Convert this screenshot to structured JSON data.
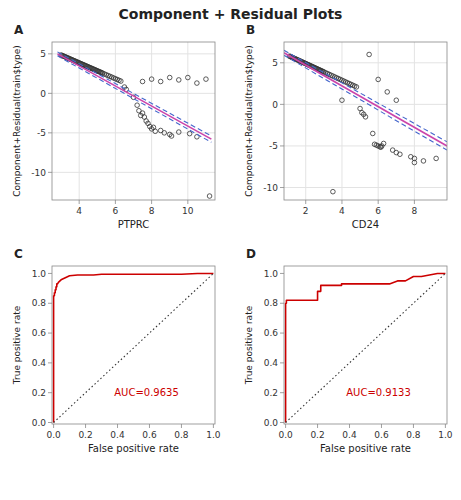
{
  "title": "Component + Residual Plots",
  "chart_data": [
    {
      "type": "scatter",
      "title": "A",
      "xlabel": "PTPRC",
      "ylabel": "Component+Residual(train$type)",
      "xlim": [
        2.5,
        11.5
      ],
      "ylim": [
        -13.5,
        6.5
      ],
      "xticks": [
        4,
        6,
        8,
        10
      ],
      "yticks": [
        -10,
        -5,
        0,
        5
      ],
      "grid": true,
      "series": [
        {
          "type": "scatter",
          "marker": "circle",
          "color": "#333333",
          "x": [
            3.0,
            3.05,
            3.1,
            3.15,
            3.2,
            3.25,
            3.3,
            3.35,
            3.4,
            3.45,
            3.5,
            3.55,
            3.6,
            3.65,
            3.7,
            3.75,
            3.8,
            3.85,
            3.9,
            3.95,
            4.0,
            4.05,
            4.1,
            4.15,
            4.2,
            4.25,
            4.3,
            4.35,
            4.4,
            4.45,
            4.5,
            4.55,
            4.6,
            4.65,
            4.7,
            4.75,
            4.8,
            4.85,
            4.9,
            4.95,
            5.0,
            5.05,
            5.1,
            5.15,
            5.2,
            5.25,
            5.3,
            5.4,
            5.5,
            5.6,
            5.7,
            5.8,
            5.9,
            6.0,
            6.1,
            6.2,
            6.3,
            6.5,
            6.6,
            7.0,
            7.2,
            7.3,
            7.4,
            7.5,
            7.6,
            7.7,
            7.8,
            7.9,
            8.0,
            8.1,
            8.2,
            8.5,
            8.7,
            9.0,
            9.1,
            9.5,
            10.1,
            10.5,
            11.2
          ],
          "values": [
            4.85,
            4.8,
            4.75,
            4.7,
            4.65,
            4.6,
            4.55,
            4.5,
            4.45,
            4.4,
            4.35,
            4.3,
            4.25,
            4.2,
            4.15,
            4.1,
            4.05,
            4.0,
            3.95,
            3.9,
            3.85,
            3.8,
            3.75,
            3.7,
            3.65,
            3.6,
            3.55,
            3.5,
            3.45,
            3.4,
            3.35,
            3.3,
            3.25,
            3.2,
            3.15,
            3.1,
            3.05,
            3.0,
            2.95,
            2.9,
            2.85,
            2.8,
            2.75,
            2.7,
            2.65,
            2.6,
            2.55,
            2.45,
            2.35,
            2.25,
            2.15,
            2.05,
            1.95,
            1.85,
            1.75,
            1.65,
            1.55,
            0.8,
            0.5,
            -0.5,
            -1.5,
            -2.2,
            -2.8,
            -2.5,
            -3.0,
            -3.5,
            -3.8,
            -4.2,
            -4.5,
            -4.3,
            -4.8,
            -4.7,
            -5.0,
            -5.2,
            -5.4,
            -4.9,
            -5.1,
            -5.5,
            -13.0
          ]
        },
        {
          "type": "scatter",
          "marker": "circle",
          "color": "#333333",
          "x": [
            7.5,
            8.0,
            8.5,
            9.0,
            9.5,
            10.0,
            10.5,
            11.0
          ],
          "values": [
            1.5,
            1.8,
            1.5,
            2.0,
            1.7,
            2.0,
            1.3,
            1.8
          ]
        },
        {
          "type": "line",
          "line_style": "dashed",
          "color": "#4466cc",
          "x": [
            2.8,
            11.3
          ],
          "values": [
            5.25,
            -5.4
          ]
        },
        {
          "type": "line",
          "line_style": "dashed",
          "color": "#4466cc",
          "x": [
            2.8,
            11.3
          ],
          "values": [
            4.75,
            -6.2
          ]
        },
        {
          "type": "line",
          "line_style": "solid",
          "color": "#cc44aa",
          "x": [
            2.8,
            11.3
          ],
          "values": [
            5.0,
            -5.8
          ]
        }
      ]
    },
    {
      "type": "scatter",
      "title": "B",
      "xlabel": "CD24",
      "ylabel": "Component+Residual(train$type)",
      "xlim": [
        0.8,
        9.8
      ],
      "ylim": [
        -11.5,
        7.5
      ],
      "xticks": [
        2,
        4,
        6,
        8
      ],
      "yticks": [
        -10,
        -5,
        0,
        5
      ],
      "grid": true,
      "series": [
        {
          "type": "scatter",
          "marker": "circle",
          "color": "#333333",
          "x": [
            1.1,
            1.15,
            1.2,
            1.25,
            1.3,
            1.35,
            1.4,
            1.45,
            1.5,
            1.55,
            1.6,
            1.65,
            1.7,
            1.75,
            1.8,
            1.85,
            1.9,
            1.95,
            2.0,
            2.05,
            2.1,
            2.15,
            2.2,
            2.25,
            2.3,
            2.35,
            2.4,
            2.45,
            2.5,
            2.55,
            2.6,
            2.65,
            2.7,
            2.75,
            2.8,
            2.85,
            2.9,
            2.95,
            3.0,
            3.1,
            3.2,
            3.3,
            3.4,
            3.5,
            3.6,
            3.7,
            3.8,
            3.9,
            4.0,
            4.1,
            4.2,
            4.3,
            4.4,
            4.5,
            4.6,
            4.7,
            4.8,
            5.0,
            5.1,
            5.2,
            5.3,
            5.7,
            5.8,
            5.9,
            6.0,
            6.1,
            6.15,
            6.2,
            6.3,
            6.8,
            7.0,
            7.2,
            7.8,
            8.0,
            8.5,
            9.2
          ],
          "values": [
            5.8,
            5.75,
            5.7,
            5.65,
            5.6,
            5.55,
            5.5,
            5.45,
            5.4,
            5.35,
            5.3,
            5.25,
            5.2,
            5.15,
            5.1,
            5.05,
            5.0,
            4.95,
            4.9,
            4.85,
            4.8,
            4.75,
            4.7,
            4.65,
            4.6,
            4.55,
            4.5,
            4.45,
            4.4,
            4.35,
            4.3,
            4.25,
            4.2,
            4.15,
            4.1,
            4.05,
            4.0,
            3.95,
            3.9,
            3.8,
            3.7,
            3.6,
            3.5,
            3.4,
            3.3,
            3.2,
            3.1,
            3.0,
            2.9,
            2.8,
            2.7,
            2.6,
            2.5,
            2.4,
            2.3,
            2.2,
            2.1,
            -0.5,
            -1.0,
            -1.2,
            -1.5,
            -3.5,
            -4.8,
            -4.9,
            -5.0,
            -5.1,
            -5.15,
            -5.0,
            -4.7,
            -5.5,
            -5.8,
            -6.0,
            -6.3,
            -6.5,
            -6.8,
            -6.5
          ]
        },
        {
          "type": "scatter",
          "marker": "circle",
          "color": "#333333",
          "x": [
            5.5,
            6.0,
            6.5,
            7.0,
            8.0,
            4.0,
            3.5
          ],
          "values": [
            6.0,
            3.0,
            1.5,
            0.5,
            -7.0,
            0.5,
            -10.5
          ]
        },
        {
          "type": "line",
          "line_style": "dashed",
          "color": "#4466cc",
          "x": [
            0.8,
            9.8
          ],
          "values": [
            6.5,
            -4.5
          ]
        },
        {
          "type": "line",
          "line_style": "dashed",
          "color": "#4466cc",
          "x": [
            0.8,
            9.8
          ],
          "values": [
            5.9,
            -5.5
          ]
        },
        {
          "type": "line",
          "line_style": "solid",
          "color": "#cc44aa",
          "x": [
            0.8,
            9.8
          ],
          "values": [
            6.2,
            -5.0
          ]
        }
      ]
    },
    {
      "type": "line",
      "title": "C",
      "xlabel": "False positive rate",
      "ylabel": "True positive rate",
      "xlim": [
        -0.01,
        1.01
      ],
      "ylim": [
        -0.01,
        1.05
      ],
      "xticks": [
        {
          "value": 0,
          "label": "0.0"
        },
        0.2,
        0.4,
        0.6,
        0.8,
        {
          "value": 1,
          "label": "1.0"
        }
      ],
      "yticks": [
        {
          "value": 0,
          "label": "0.0"
        },
        0.2,
        0.4,
        0.6,
        0.8,
        {
          "value": 1,
          "label": "1.0"
        }
      ],
      "grid": false,
      "annotations": [
        {
          "text": "AUC=0.9635"
        }
      ],
      "series": [
        {
          "type": "line",
          "line_style": "solid",
          "color": "#cc0000",
          "x": [
            0.0,
            0.0,
            0.005,
            0.005,
            0.01,
            0.01,
            0.015,
            0.015,
            0.02,
            0.02,
            0.025,
            0.03,
            0.04,
            0.05,
            0.06,
            0.07,
            0.08,
            0.09,
            0.1,
            0.15,
            0.2,
            0.25,
            0.3,
            0.35,
            0.4,
            0.5,
            0.6,
            0.7,
            0.8,
            0.9,
            1.0
          ],
          "values": [
            0.0,
            0.85,
            0.85,
            0.87,
            0.87,
            0.89,
            0.89,
            0.91,
            0.91,
            0.93,
            0.93,
            0.94,
            0.95,
            0.96,
            0.965,
            0.97,
            0.975,
            0.98,
            0.985,
            0.99,
            0.99,
            0.99,
            0.995,
            0.995,
            0.995,
            0.995,
            0.995,
            0.995,
            0.995,
            1.0,
            1.0
          ]
        },
        {
          "type": "line",
          "line_style": "dotted",
          "color": "#333333",
          "x": [
            0,
            1
          ],
          "values": [
            0,
            1
          ]
        }
      ]
    },
    {
      "type": "line",
      "title": "D",
      "xlabel": "False positive rate",
      "ylabel": "True positive rate",
      "xlim": [
        -0.01,
        1.01
      ],
      "ylim": [
        -0.01,
        1.05
      ],
      "xticks": [
        {
          "value": 0,
          "label": "0.0"
        },
        0.2,
        0.4,
        0.6,
        0.8,
        {
          "value": 1,
          "label": "1.0"
        }
      ],
      "yticks": [
        {
          "value": 0,
          "label": "0.0"
        },
        0.2,
        0.4,
        0.6,
        0.8,
        {
          "value": 1,
          "label": "1.0"
        }
      ],
      "grid": false,
      "annotations": [
        {
          "text": "AUC=0.9133"
        }
      ],
      "series": [
        {
          "type": "line",
          "line_style": "solid",
          "color": "#cc0000",
          "x": [
            0.0,
            0.0,
            0.005,
            0.005,
            0.2,
            0.2,
            0.22,
            0.22,
            0.35,
            0.35,
            0.5,
            0.5,
            0.55,
            0.6,
            0.65,
            0.7,
            0.75,
            0.8,
            0.85,
            0.9,
            0.95,
            1.0
          ],
          "values": [
            0.0,
            0.8,
            0.8,
            0.82,
            0.82,
            0.88,
            0.88,
            0.92,
            0.92,
            0.93,
            0.93,
            0.93,
            0.93,
            0.93,
            0.93,
            0.95,
            0.95,
            0.98,
            0.98,
            0.99,
            1.0,
            1.0
          ]
        },
        {
          "type": "line",
          "line_style": "dotted",
          "color": "#333333",
          "x": [
            0,
            1
          ],
          "values": [
            0,
            1
          ]
        }
      ]
    }
  ]
}
